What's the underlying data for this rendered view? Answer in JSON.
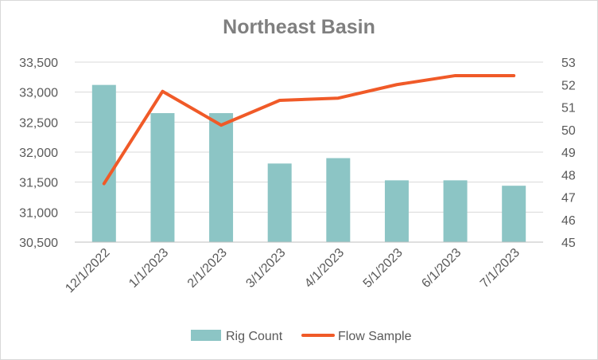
{
  "chart_data": {
    "type": "bar",
    "title": "Northeast Basin",
    "categories": [
      "12/1/2022",
      "1/1/2023",
      "2/1/2023",
      "3/1/2023",
      "4/1/2023",
      "5/1/2023",
      "6/1/2023",
      "7/1/2023"
    ],
    "series": [
      {
        "name": "Rig Count",
        "type": "bar",
        "axis": "left",
        "color": "#8cc5c5",
        "values": [
          33120,
          32650,
          32650,
          31810,
          31900,
          31530,
          31530,
          31440
        ]
      },
      {
        "name": "Flow Sample",
        "type": "line",
        "axis": "right",
        "color": "#f05a28",
        "values": [
          47.6,
          51.7,
          50.2,
          51.3,
          51.4,
          52.0,
          52.4,
          52.4
        ]
      }
    ],
    "y_left": {
      "min": 30500,
      "max": 33500,
      "step": 500,
      "tick_labels": [
        "30,500",
        "31,000",
        "31,500",
        "32,000",
        "32,500",
        "33,000",
        "33,500"
      ]
    },
    "y_right": {
      "min": 45,
      "max": 53,
      "step": 1,
      "tick_labels": [
        "45",
        "46",
        "47",
        "48",
        "49",
        "50",
        "51",
        "52",
        "53"
      ]
    },
    "grid": true,
    "legend": "bottom"
  }
}
